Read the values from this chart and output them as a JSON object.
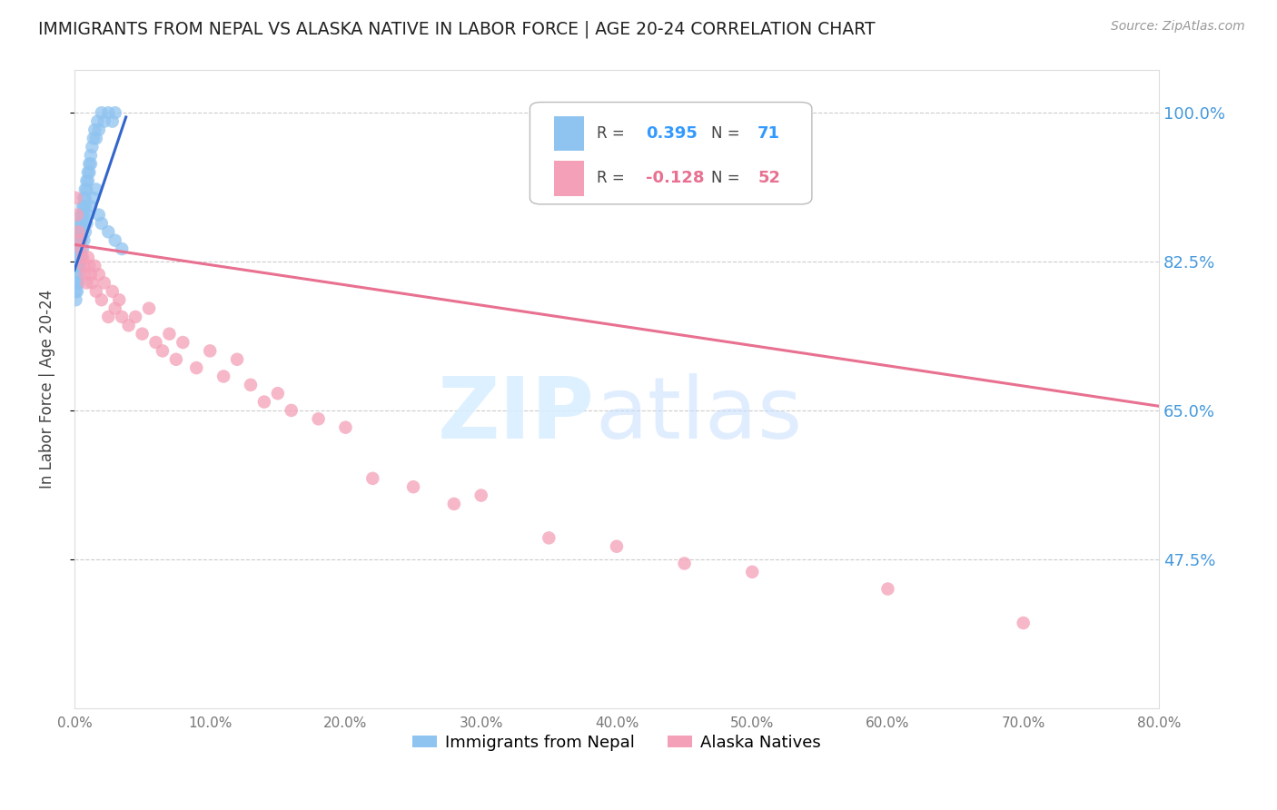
{
  "title": "IMMIGRANTS FROM NEPAL VS ALASKA NATIVE IN LABOR FORCE | AGE 20-24 CORRELATION CHART",
  "source": "Source: ZipAtlas.com",
  "ylabel": "In Labor Force | Age 20-24",
  "xlim": [
    0.0,
    0.8
  ],
  "ylim": [
    0.3,
    1.05
  ],
  "yticks": [
    0.475,
    0.65,
    0.825,
    1.0
  ],
  "ytick_labels": [
    "47.5%",
    "65.0%",
    "82.5%",
    "100.0%"
  ],
  "xticks": [
    0.0,
    0.1,
    0.2,
    0.3,
    0.4,
    0.5,
    0.6,
    0.7,
    0.8
  ],
  "xtick_labels": [
    "0.0%",
    "10.0%",
    "20.0%",
    "30.0%",
    "40.0%",
    "50.0%",
    "60.0%",
    "70.0%",
    "80.0%"
  ],
  "nepal_color": "#90C4F0",
  "alaska_color": "#F4A0B8",
  "nepal_line_color": "#3366CC",
  "alaska_line_color": "#E87090",
  "background_color": "#ffffff",
  "nepal_x": [
    0.001,
    0.001,
    0.001,
    0.001,
    0.002,
    0.002,
    0.002,
    0.002,
    0.002,
    0.003,
    0.003,
    0.003,
    0.003,
    0.003,
    0.004,
    0.004,
    0.004,
    0.004,
    0.005,
    0.005,
    0.005,
    0.005,
    0.006,
    0.006,
    0.006,
    0.007,
    0.007,
    0.007,
    0.008,
    0.008,
    0.008,
    0.009,
    0.009,
    0.01,
    0.01,
    0.011,
    0.011,
    0.012,
    0.012,
    0.013,
    0.014,
    0.015,
    0.016,
    0.017,
    0.018,
    0.02,
    0.022,
    0.025,
    0.028,
    0.03,
    0.001,
    0.001,
    0.002,
    0.002,
    0.003,
    0.003,
    0.004,
    0.005,
    0.006,
    0.007,
    0.008,
    0.009,
    0.01,
    0.012,
    0.014,
    0.016,
    0.018,
    0.02,
    0.025,
    0.03,
    0.035
  ],
  "nepal_y": [
    0.83,
    0.84,
    0.82,
    0.81,
    0.85,
    0.84,
    0.83,
    0.82,
    0.8,
    0.86,
    0.85,
    0.84,
    0.83,
    0.82,
    0.87,
    0.86,
    0.85,
    0.84,
    0.88,
    0.87,
    0.86,
    0.85,
    0.89,
    0.88,
    0.87,
    0.9,
    0.89,
    0.88,
    0.91,
    0.9,
    0.89,
    0.92,
    0.91,
    0.93,
    0.92,
    0.94,
    0.93,
    0.95,
    0.94,
    0.96,
    0.97,
    0.98,
    0.97,
    0.99,
    0.98,
    1.0,
    0.99,
    1.0,
    0.99,
    1.0,
    0.79,
    0.78,
    0.8,
    0.79,
    0.81,
    0.8,
    0.82,
    0.83,
    0.84,
    0.85,
    0.86,
    0.87,
    0.88,
    0.89,
    0.9,
    0.91,
    0.88,
    0.87,
    0.86,
    0.85,
    0.84
  ],
  "alaska_x": [
    0.001,
    0.002,
    0.003,
    0.004,
    0.005,
    0.006,
    0.007,
    0.008,
    0.009,
    0.01,
    0.011,
    0.012,
    0.013,
    0.015,
    0.016,
    0.018,
    0.02,
    0.022,
    0.025,
    0.028,
    0.03,
    0.033,
    0.035,
    0.04,
    0.045,
    0.05,
    0.055,
    0.06,
    0.065,
    0.07,
    0.075,
    0.08,
    0.09,
    0.1,
    0.11,
    0.12,
    0.13,
    0.14,
    0.15,
    0.16,
    0.18,
    0.2,
    0.22,
    0.25,
    0.28,
    0.3,
    0.35,
    0.4,
    0.45,
    0.5,
    0.6,
    0.7
  ],
  "alaska_y": [
    0.9,
    0.88,
    0.86,
    0.85,
    0.84,
    0.83,
    0.82,
    0.81,
    0.8,
    0.83,
    0.82,
    0.81,
    0.8,
    0.82,
    0.79,
    0.81,
    0.78,
    0.8,
    0.76,
    0.79,
    0.77,
    0.78,
    0.76,
    0.75,
    0.76,
    0.74,
    0.77,
    0.73,
    0.72,
    0.74,
    0.71,
    0.73,
    0.7,
    0.72,
    0.69,
    0.71,
    0.68,
    0.66,
    0.67,
    0.65,
    0.64,
    0.63,
    0.57,
    0.56,
    0.54,
    0.55,
    0.5,
    0.49,
    0.47,
    0.46,
    0.44,
    0.4
  ],
  "nepal_line_x0": 0.0,
  "nepal_line_x1": 0.038,
  "nepal_line_y0": 0.815,
  "nepal_line_y1": 0.995,
  "alaska_line_x0": 0.0,
  "alaska_line_x1": 0.8,
  "alaska_line_y0": 0.845,
  "alaska_line_y1": 0.655
}
